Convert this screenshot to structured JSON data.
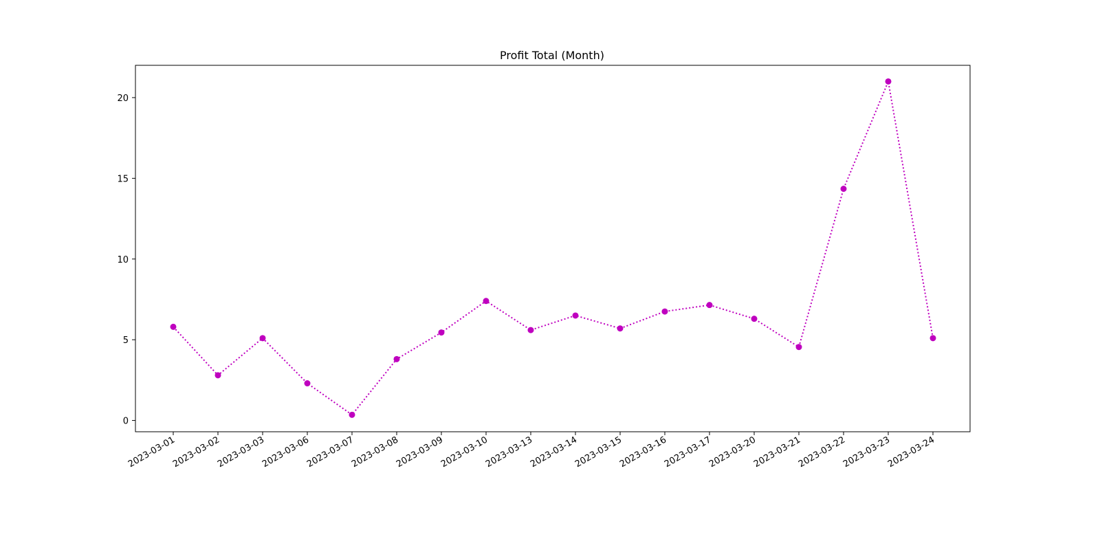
{
  "chart_data": {
    "type": "line",
    "title": "Profit Total (Month)",
    "xlabel": "",
    "ylabel": "",
    "ylim": [
      -0.7,
      22.0
    ],
    "y_ticks": [
      0,
      5,
      10,
      15,
      20
    ],
    "grid": false,
    "x": [
      "2023-03-01",
      "2023-03-02",
      "2023-03-03",
      "2023-03-06",
      "2023-03-07",
      "2023-03-08",
      "2023-03-09",
      "2023-03-10",
      "2023-03-13",
      "2023-03-14",
      "2023-03-15",
      "2023-03-16",
      "2023-03-17",
      "2023-03-20",
      "2023-03-21",
      "2023-03-22",
      "2023-03-23",
      "2023-03-24"
    ],
    "series": [
      {
        "values": [
          5.8,
          2.8,
          5.1,
          2.3,
          0.35,
          3.8,
          5.45,
          7.4,
          5.6,
          6.5,
          5.7,
          6.75,
          7.15,
          6.3,
          4.55,
          14.35,
          21.0,
          5.1
        ],
        "color": "#bf00bf",
        "line_style": "dotted",
        "marker": "circle"
      }
    ]
  }
}
